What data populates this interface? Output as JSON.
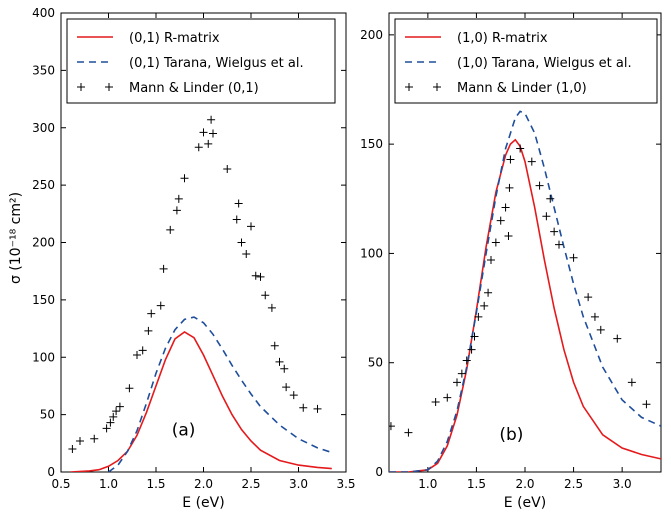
{
  "chart_data": [
    {
      "type": "line",
      "panel_label": "(a)",
      "xlabel": "E (eV)",
      "ylabel": "σ (10⁻¹⁸ cm²)",
      "xlim": [
        0.5,
        3.5
      ],
      "ylim": [
        0,
        400
      ],
      "xticks": [
        0.5,
        1.0,
        1.5,
        2.0,
        2.5,
        3.0,
        3.5
      ],
      "xtick_labels": [
        "0.5",
        "1.0",
        "1.5",
        "2.0",
        "2.5",
        "3.0",
        "3.5"
      ],
      "yticks": [
        0,
        50,
        100,
        150,
        200,
        250,
        300,
        350,
        400
      ],
      "ytick_labels": [
        "0",
        "50",
        "100",
        "150",
        "200",
        "250",
        "300",
        "350",
        "400"
      ],
      "legend_position": "top",
      "series": [
        {
          "name": "(0,1) R-matrix",
          "style": "solid",
          "color": "#e41a1c",
          "x": [
            0.6,
            0.8,
            0.9,
            1.0,
            1.1,
            1.2,
            1.3,
            1.4,
            1.5,
            1.6,
            1.7,
            1.8,
            1.9,
            2.0,
            2.1,
            2.2,
            2.3,
            2.4,
            2.5,
            2.6,
            2.8,
            3.0,
            3.2,
            3.35
          ],
          "y": [
            0,
            1,
            2,
            5,
            10,
            18,
            32,
            52,
            75,
            98,
            116,
            122,
            117,
            102,
            84,
            66,
            50,
            37,
            27,
            19,
            10,
            6,
            4,
            3
          ]
        },
        {
          "name": "(0,1) Tarana, Wielgus et al.",
          "style": "dashed",
          "color": "#1f4e9c",
          "x": [
            1.0,
            1.1,
            1.2,
            1.3,
            1.4,
            1.5,
            1.6,
            1.7,
            1.8,
            1.9,
            2.0,
            2.1,
            2.2,
            2.3,
            2.4,
            2.5,
            2.6,
            2.8,
            3.0,
            3.2,
            3.35
          ],
          "y": [
            0,
            6,
            18,
            36,
            60,
            86,
            108,
            124,
            133,
            135,
            130,
            120,
            107,
            93,
            80,
            68,
            57,
            41,
            29,
            21,
            17
          ]
        },
        {
          "name": "Mann & Linder (0,1)",
          "style": "markers",
          "color": "#000000",
          "x": [
            0.62,
            0.7,
            0.85,
            0.98,
            1.02,
            1.05,
            1.08,
            1.12,
            1.22,
            1.3,
            1.36,
            1.42,
            1.45,
            1.55,
            1.58,
            1.65,
            1.72,
            1.74,
            1.8,
            1.95,
            2.0,
            2.05,
            2.08,
            2.1,
            2.25,
            2.35,
            2.37,
            2.4,
            2.45,
            2.5,
            2.55,
            2.6,
            2.65,
            2.72,
            2.75,
            2.8,
            2.85,
            2.87,
            2.95,
            3.05,
            3.2
          ],
          "y": [
            20,
            27,
            29,
            38,
            43,
            48,
            53,
            57,
            73,
            102,
            106,
            123,
            138,
            145,
            177,
            211,
            228,
            238,
            256,
            283,
            296,
            286,
            307,
            295,
            264,
            220,
            234,
            200,
            190,
            214,
            171,
            170,
            154,
            143,
            110,
            96,
            90,
            74,
            67,
            56,
            55
          ]
        }
      ]
    },
    {
      "type": "line",
      "panel_label": "(b)",
      "xlabel": "E (eV)",
      "ylabel": "",
      "xlim": [
        0.6,
        3.4
      ],
      "ylim": [
        0,
        210
      ],
      "xticks": [
        1.0,
        1.5,
        2.0,
        2.5,
        3.0
      ],
      "xtick_labels": [
        "1.0",
        "1.5",
        "2.0",
        "2.5",
        "3.0"
      ],
      "yticks": [
        0,
        50,
        100,
        150,
        200
      ],
      "ytick_labels": [
        "0",
        "50",
        "100",
        "150",
        "200"
      ],
      "legend_position": "top",
      "series": [
        {
          "name": "(1,0) R-matrix",
          "style": "solid",
          "color": "#e41a1c",
          "x": [
            0.6,
            0.8,
            1.0,
            1.1,
            1.2,
            1.3,
            1.4,
            1.5,
            1.6,
            1.7,
            1.8,
            1.85,
            1.9,
            1.95,
            2.0,
            2.1,
            2.2,
            2.3,
            2.4,
            2.5,
            2.6,
            2.8,
            3.0,
            3.2,
            3.4
          ],
          "y": [
            0,
            0,
            1,
            4,
            12,
            26,
            47,
            74,
            103,
            128,
            145,
            150,
            152,
            149,
            142,
            121,
            97,
            75,
            56,
            41,
            30,
            17,
            11,
            8,
            6
          ]
        },
        {
          "name": "(1,0) Tarana, Wielgus et al.",
          "style": "dashed",
          "color": "#1f4e9c",
          "x": [
            0.6,
            0.8,
            1.0,
            1.1,
            1.2,
            1.3,
            1.4,
            1.5,
            1.6,
            1.7,
            1.8,
            1.9,
            1.95,
            2.0,
            2.1,
            2.2,
            2.3,
            2.4,
            2.5,
            2.6,
            2.8,
            3.0,
            3.2,
            3.4
          ],
          "y": [
            0,
            0,
            1,
            5,
            14,
            28,
            48,
            73,
            100,
            126,
            148,
            162,
            165,
            164,
            155,
            139,
            121,
            103,
            86,
            71,
            48,
            33,
            25,
            21
          ]
        },
        {
          "name": "Mann & Linder (1,0)",
          "style": "markers",
          "color": "#000000",
          "x": [
            0.62,
            0.8,
            1.08,
            1.2,
            1.3,
            1.35,
            1.4,
            1.45,
            1.48,
            1.52,
            1.58,
            1.62,
            1.65,
            1.7,
            1.75,
            1.8,
            1.83,
            1.84,
            1.85,
            1.95,
            2.07,
            2.15,
            2.22,
            2.26,
            2.3,
            2.35,
            2.5,
            2.65,
            2.72,
            2.78,
            2.95,
            3.1,
            3.25
          ],
          "y": [
            21,
            18,
            32,
            34,
            41,
            45,
            51,
            56,
            62,
            71,
            76,
            82,
            97,
            105,
            115,
            121,
            108,
            130,
            143,
            148,
            142,
            131,
            117,
            125,
            110,
            104,
            98,
            80,
            71,
            65,
            61,
            41,
            31
          ]
        }
      ]
    }
  ]
}
